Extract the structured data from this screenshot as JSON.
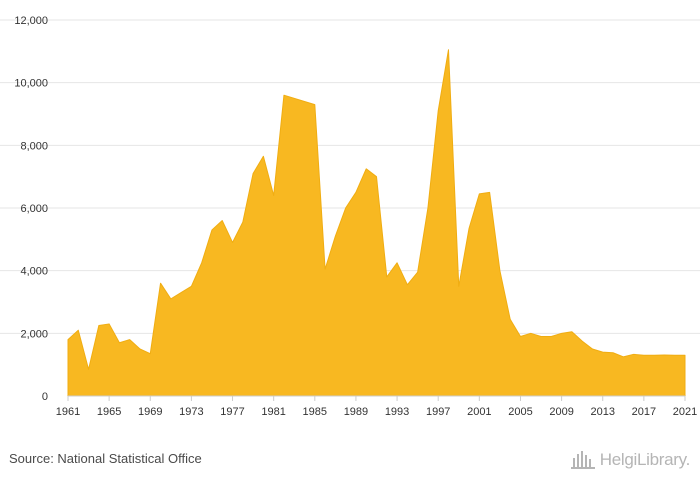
{
  "chart_data": {
    "type": "area",
    "x": [
      1961,
      1962,
      1963,
      1964,
      1965,
      1966,
      1967,
      1968,
      1969,
      1970,
      1971,
      1972,
      1973,
      1974,
      1975,
      1976,
      1977,
      1978,
      1979,
      1980,
      1981,
      1982,
      1983,
      1984,
      1985,
      1986,
      1987,
      1988,
      1989,
      1990,
      1991,
      1992,
      1993,
      1994,
      1995,
      1996,
      1997,
      1998,
      1999,
      2000,
      2001,
      2002,
      2003,
      2004,
      2005,
      2006,
      2007,
      2008,
      2009,
      2010,
      2011,
      2012,
      2013,
      2014,
      2015,
      2016,
      2017,
      2018,
      2019,
      2020,
      2021
    ],
    "series": [
      {
        "values": [
          1800,
          2100,
          850,
          2250,
          2300,
          1700,
          1800,
          1500,
          1350,
          3600,
          3100,
          3300,
          3500,
          4250,
          5300,
          5600,
          4900,
          5550,
          7100,
          7650,
          6400,
          9600,
          9500,
          9400,
          9300,
          4050,
          5100,
          6000,
          6500,
          7250,
          7000,
          3800,
          4250,
          3550,
          3950,
          6000,
          9100,
          11050,
          3500,
          5350,
          6450,
          6500,
          4000,
          2450,
          1900,
          2000,
          1900,
          1900,
          2000,
          2050,
          1750,
          1500,
          1400,
          1380,
          1250,
          1330,
          1300,
          1300,
          1310,
          1300,
          1300
        ]
      }
    ],
    "x_ticks": [
      1961,
      1965,
      1969,
      1973,
      1977,
      1981,
      1985,
      1989,
      1993,
      1997,
      2001,
      2005,
      2009,
      2013,
      2017,
      2021
    ],
    "y_ticks": [
      0,
      2000,
      4000,
      6000,
      8000,
      10000,
      12000
    ],
    "y_tick_labels": [
      "0",
      "2,000",
      "4,000",
      "6,000",
      "8,000",
      "10,000",
      "12,000"
    ],
    "xlim": [
      1961,
      2021
    ],
    "ylim": [
      0,
      12000
    ],
    "title": "",
    "xlabel": "",
    "ylabel": "",
    "grid": "horizontal",
    "legend": "none",
    "colors": {
      "fill": "#f8b821",
      "stroke": "#f0ad12",
      "grid": "#e6e6e6",
      "baseline": "#cccccc"
    }
  },
  "footer": {
    "source": "Source: National Statistical Office",
    "logo_text": "HelgiLibrary."
  },
  "icons": {
    "logo": "helgi-library-logo-icon"
  }
}
